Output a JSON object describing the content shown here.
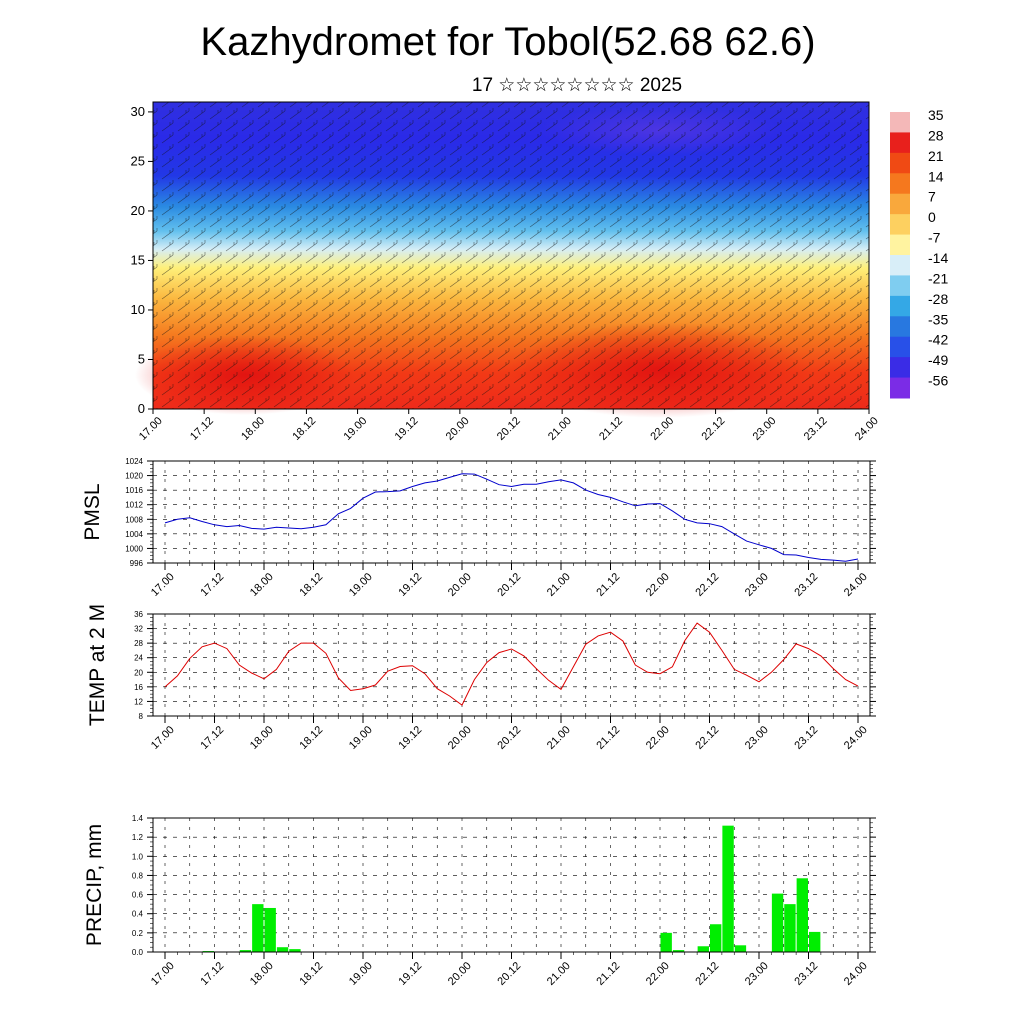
{
  "header": {
    "title": "Kazhydromet for Tobol(52.68 62.6)",
    "date": "17 ☆☆☆☆☆☆☆☆ 2025"
  },
  "time_ticks": [
    "17.00",
    "17.12",
    "18.00",
    "18.12",
    "19.00",
    "19.12",
    "20.00",
    "20.12",
    "21.00",
    "21.12",
    "22.00",
    "22.12",
    "23.00",
    "23.12",
    "24.00"
  ],
  "chart_data": [
    {
      "type": "heatmap",
      "title": "Kazhydromet for Tobol(52.68 62.6)",
      "subtitle": "17 ☆☆☆☆☆☆☆☆ 2025",
      "x_ticks": [
        "17.00",
        "17.12",
        "18.00",
        "18.12",
        "19.00",
        "19.12",
        "20.00",
        "20.12",
        "21.00",
        "21.12",
        "22.00",
        "22.12",
        "23.00",
        "23.12",
        "24.00"
      ],
      "y_ticks": [
        0,
        5,
        10,
        15,
        20,
        25,
        30
      ],
      "ylim": [
        0,
        31
      ],
      "colorbar_labels": [
        "35",
        "28",
        "21",
        "14",
        "7",
        "0",
        "-7",
        "-14",
        "-21",
        "-28",
        "-35",
        "-42",
        "-49",
        "-56"
      ],
      "colorbar_colors": [
        "#f4b8b8",
        "#e8201c",
        "#f04a14",
        "#f5781e",
        "#f9a83c",
        "#fdd060",
        "#fff3a0",
        "#d8eef8",
        "#7fcdf0",
        "#34a8e6",
        "#2878e0",
        "#2850e8",
        "#3a2ce6",
        "#7b2ce6"
      ],
      "overlay": "wind barbs"
    },
    {
      "type": "line",
      "ylabel": "PMSL",
      "ylim": [
        996,
        1024
      ],
      "y_ticks": [
        996,
        1000,
        1004,
        1008,
        1012,
        1016,
        1020,
        1024
      ],
      "grid": true,
      "series": [
        {
          "color": "#0000cc",
          "x": [
            0,
            3,
            6,
            9,
            12,
            15,
            18,
            21,
            24,
            27,
            30,
            33,
            36,
            39,
            42,
            45,
            48,
            51,
            54,
            57,
            60,
            63,
            66,
            69,
            72,
            75,
            78,
            81,
            84,
            87,
            90,
            93,
            96,
            99,
            102,
            105,
            108,
            111,
            114,
            117,
            120,
            123,
            126,
            129,
            132,
            135,
            138,
            141,
            144,
            147,
            150,
            153,
            156,
            159,
            162,
            165,
            168
          ],
          "values": [
            1007.0,
            1008.0,
            1008.4,
            1007.4,
            1006.5,
            1006.0,
            1006.3,
            1005.5,
            1005.3,
            1005.8,
            1005.6,
            1005.4,
            1005.8,
            1006.5,
            1009.5,
            1011.0,
            1013.8,
            1015.5,
            1015.6,
            1015.8,
            1017.0,
            1018.0,
            1018.5,
            1019.5,
            1020.5,
            1020.4,
            1019.0,
            1017.5,
            1017.0,
            1017.6,
            1017.6,
            1018.3,
            1018.8,
            1018.0,
            1016.0,
            1014.8,
            1014.0,
            1012.8,
            1011.7,
            1012.2,
            1012.3,
            1010.3,
            1008.0,
            1007.0,
            1006.8,
            1006.0,
            1004.0,
            1002.0,
            1001.0,
            1000.0,
            998.3,
            998.2,
            997.5,
            997.0,
            996.8,
            996.5,
            997.1
          ]
        }
      ]
    },
    {
      "type": "line",
      "ylabel": "TEMP at 2 M",
      "ylim": [
        8,
        36
      ],
      "y_ticks": [
        8,
        12,
        16,
        20,
        24,
        28,
        32,
        36
      ],
      "grid": true,
      "series": [
        {
          "color": "#dd0000",
          "x": [
            0,
            3,
            6,
            9,
            12,
            15,
            18,
            21,
            24,
            27,
            30,
            33,
            36,
            39,
            42,
            45,
            48,
            51,
            54,
            57,
            60,
            63,
            66,
            69,
            72,
            75,
            78,
            81,
            84,
            87,
            90,
            93,
            96,
            99,
            102,
            105,
            108,
            111,
            114,
            117,
            120,
            123,
            126,
            129,
            132,
            135,
            138,
            141,
            144,
            147,
            150,
            153,
            156,
            159,
            162,
            165,
            168
          ],
          "values": [
            16.0,
            19.0,
            23.8,
            27.0,
            28.0,
            26.5,
            22.0,
            19.8,
            18.2,
            20.8,
            25.8,
            28.0,
            28.0,
            25.2,
            18.5,
            15.0,
            15.5,
            16.5,
            20.3,
            21.6,
            21.8,
            19.6,
            15.5,
            13.5,
            11.0,
            18.0,
            22.7,
            25.4,
            26.4,
            24.5,
            21.0,
            17.8,
            15.3,
            21.5,
            27.7,
            30.0,
            31.0,
            28.6,
            22.0,
            20.0,
            19.6,
            21.5,
            28.7,
            33.5,
            31.0,
            26.0,
            20.8,
            19.2,
            17.4,
            20.0,
            23.5,
            27.8,
            26.5,
            24.5,
            21.0,
            18.0,
            16.2
          ]
        }
      ]
    },
    {
      "type": "bar",
      "ylabel": "PRECIP, mm",
      "ylim": [
        0,
        1.4
      ],
      "y_ticks": [
        "0.0",
        "0.2",
        "0.4",
        "0.6",
        "0.8",
        "1.0",
        "1.2",
        "1.4"
      ],
      "grid": true,
      "color": "#00ee00",
      "x": [
        0,
        3,
        6,
        9,
        12,
        15,
        18,
        21,
        24,
        27,
        30,
        33,
        36,
        39,
        42,
        45,
        48,
        51,
        54,
        57,
        60,
        63,
        66,
        69,
        72,
        75,
        78,
        81,
        84,
        87,
        90,
        93,
        96,
        99,
        102,
        105,
        108,
        111,
        114,
        117,
        120,
        123,
        126,
        129,
        132,
        135,
        138,
        141,
        144,
        147,
        150,
        153,
        156,
        159,
        162,
        165
      ],
      "values": [
        0,
        0,
        0,
        0.01,
        0,
        0,
        0.02,
        0.5,
        0.46,
        0.05,
        0.03,
        0,
        0,
        0,
        0,
        0,
        0,
        0,
        0,
        0,
        0,
        0,
        0,
        0,
        0,
        0,
        0,
        0,
        0,
        0,
        0,
        0,
        0,
        0,
        0,
        0,
        0,
        0,
        0,
        0,
        0.2,
        0.02,
        0,
        0.06,
        0.29,
        1.32,
        0.07,
        0,
        0,
        0.61,
        0.5,
        0.77,
        0.21,
        0,
        0,
        0
      ]
    }
  ]
}
